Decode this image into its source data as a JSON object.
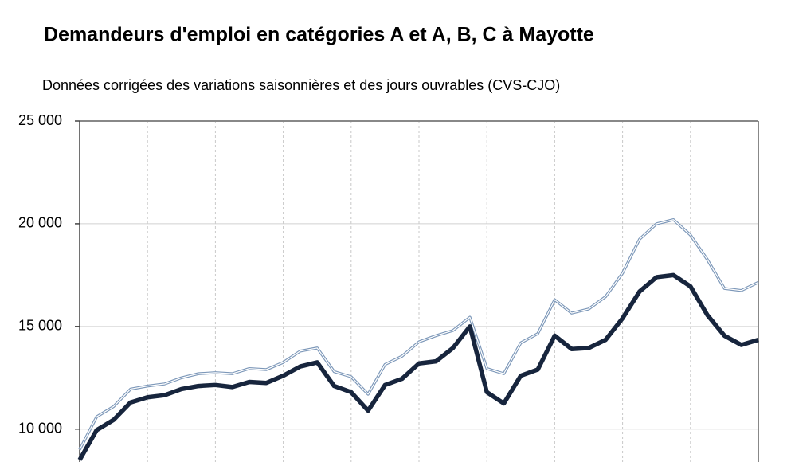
{
  "chart_data": {
    "type": "line",
    "title": "Demandeurs d'emploi en catégories A et A, B, C à Mayotte",
    "subtitle": "Données corrigées des variations saisonnières et des jours ouvrables (CVS-CJO)",
    "categories": [
      null,
      null,
      null,
      null,
      null,
      null,
      null,
      null,
      null,
      null,
      null,
      null,
      null,
      null,
      null,
      null,
      null,
      null,
      null,
      null,
      null,
      null,
      null,
      null,
      null,
      null,
      null,
      null,
      null,
      null,
      null,
      null,
      null,
      null,
      null,
      null,
      null,
      null,
      null,
      null,
      null
    ],
    "series": [
      {
        "color": "#7d98b9",
        "values": [
          9000,
          10600,
          11100,
          11950,
          12100,
          12200,
          12500,
          12700,
          12750,
          12700,
          12950,
          12900,
          13250,
          13800,
          13950,
          12800,
          12550,
          11700,
          13150,
          13550,
          14250,
          14550,
          14800,
          15450,
          12950,
          12700,
          14200,
          14650,
          16300,
          15650,
          15850,
          16450,
          17600,
          19250,
          20000,
          20200,
          19450,
          18250,
          16850,
          16750,
          17150
        ]
      },
      {
        "color": "#17253d",
        "values": [
          8500,
          9950,
          10450,
          11300,
          11550,
          11650,
          11950,
          12100,
          12150,
          12050,
          12300,
          12250,
          12600,
          13050,
          13250,
          12100,
          11800,
          10900,
          12150,
          12450,
          13200,
          13300,
          13950,
          15000,
          11800,
          11250,
          12600,
          12900,
          14550,
          13900,
          13950,
          14350,
          15400,
          16700,
          17400,
          17500,
          16950,
          15550,
          14550,
          14100,
          14350
        ]
      }
    ],
    "ylim": [
      8400,
      25000
    ],
    "yticks": [
      {
        "value": 10000,
        "label": "10 000"
      },
      {
        "value": 15000,
        "label": "15 000"
      },
      {
        "value": 20000,
        "label": "20 000"
      },
      {
        "value": 25000,
        "label": "25 000"
      }
    ],
    "grid": true
  }
}
